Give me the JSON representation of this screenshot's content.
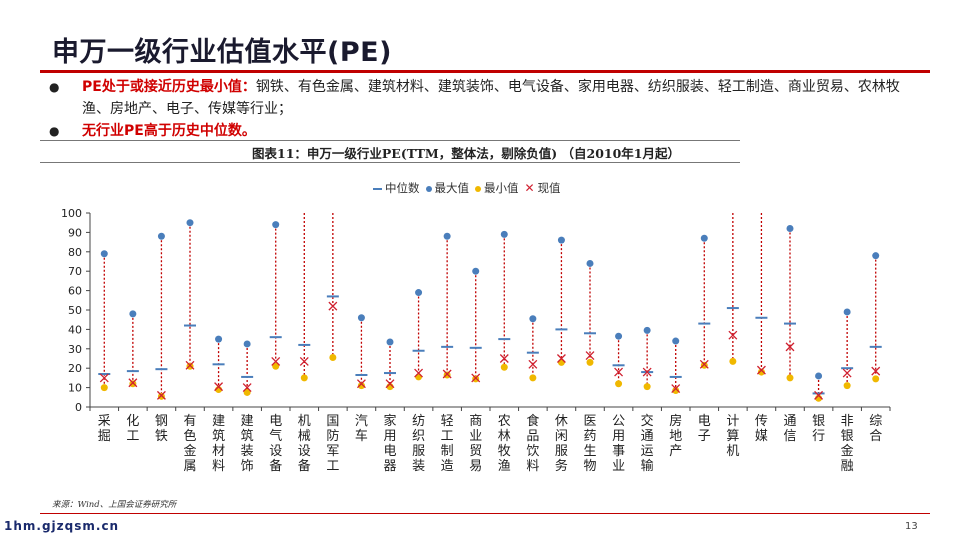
{
  "page": {
    "title": "申万一级行业估值水平(PE)",
    "bullets": [
      {
        "highlight": "PE处于或接近历史最小值：",
        "text": "钢铁、有色金属、建筑材料、建筑装饰、电气设备、家用电器、纺织服装、轻工制造、商业贸易、农林牧渔、房地产、电子、传媒等行业；"
      },
      {
        "highlight": "无行业PE高于历史中位数。",
        "text": ""
      }
    ],
    "figure_title": "图表11：申万一级行业PE(TTM，整体法，剔除负值) （自2010年1月起）",
    "source": "来源：Wind、上国会证券研究所",
    "footer_logo": "1hm.gjzqsm.cn",
    "page_number": "13"
  },
  "legend": {
    "median": "中位数",
    "max": "最大值",
    "min": "最小值",
    "current": "现值"
  },
  "colors": {
    "accent": "#c00000",
    "highlight_text": "#d00000",
    "median": "#4a7ebb",
    "max": "#4a7ebb",
    "min": "#f0b800",
    "current": "#d02030",
    "range_line": "#c00000"
  },
  "chart_data": {
    "type": "scatter",
    "title": "申万一级行业PE(TTM，整体法，剔除负值) （自2010年1月起）",
    "ylim": [
      0,
      100
    ],
    "yticks": [
      0,
      10,
      20,
      30,
      40,
      50,
      60,
      70,
      80,
      90,
      100
    ],
    "categories": [
      "采掘",
      "化工",
      "钢铁",
      "有色金属",
      "建筑材料",
      "建筑装饰",
      "电气设备",
      "机械设备",
      "国防军工",
      "汽车",
      "家用电器",
      "纺织服装",
      "轻工制造",
      "商业贸易",
      "农林牧渔",
      "食品饮料",
      "休闲服务",
      "医药生物",
      "公用事业",
      "交通运输",
      "房地产",
      "电子",
      "计算机",
      "传媒",
      "通信",
      "银行",
      "非银金融",
      "综合"
    ],
    "series": [
      {
        "name": "中位数",
        "values": [
          17,
          18.5,
          19.5,
          42,
          22,
          15.5,
          36,
          32,
          57,
          16.5,
          17.5,
          29,
          31,
          30.5,
          35,
          28,
          40,
          38,
          21.5,
          18,
          15.5,
          43,
          51,
          46,
          43,
          7,
          20,
          31
        ]
      },
      {
        "name": "最大值",
        "values": [
          79,
          48,
          88,
          95,
          35,
          32.5,
          94,
          100,
          100,
          46,
          33.5,
          59,
          88,
          70,
          89,
          45.5,
          86,
          74,
          36.5,
          39.5,
          34,
          87,
          100,
          100,
          92,
          16,
          49,
          78
        ]
      },
      {
        "name": "最小值",
        "values": [
          10,
          12,
          5.5,
          21,
          9,
          7.5,
          21,
          15,
          25.5,
          11,
          10.5,
          15.5,
          16.5,
          14.5,
          20.5,
          15,
          23,
          23,
          12,
          10.5,
          8.5,
          21.5,
          23.5,
          18,
          15,
          4.5,
          11,
          14.5
        ]
      },
      {
        "name": "现值",
        "values": [
          15,
          12.5,
          6,
          21.5,
          10.5,
          10,
          23.5,
          23.5,
          52,
          12,
          12,
          17.5,
          17,
          15,
          25,
          22,
          25,
          26.5,
          18,
          18,
          9.5,
          22,
          37,
          19,
          31,
          6,
          17.5,
          18.5
        ]
      }
    ]
  }
}
